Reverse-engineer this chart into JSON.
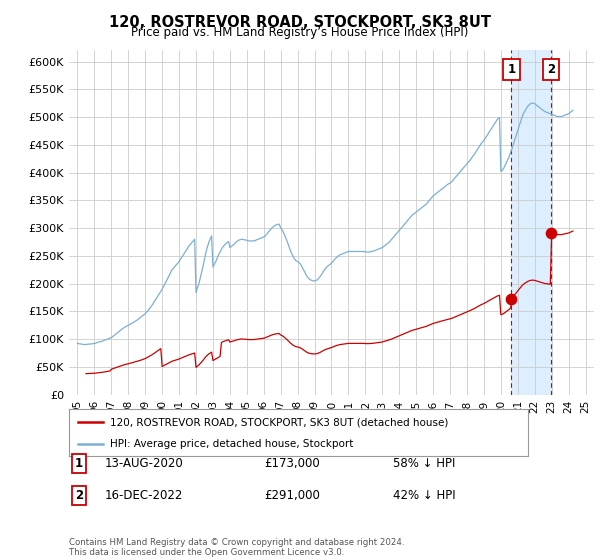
{
  "title": "120, ROSTREVOR ROAD, STOCKPORT, SK3 8UT",
  "subtitle": "Price paid vs. HM Land Registry’s House Price Index (HPI)",
  "ytick_values": [
    0,
    50000,
    100000,
    150000,
    200000,
    250000,
    300000,
    350000,
    400000,
    450000,
    500000,
    550000,
    600000
  ],
  "ylim": [
    0,
    620000
  ],
  "xlim_start": 1994.5,
  "xlim_end": 2025.5,
  "background_color": "#ffffff",
  "grid_color": "#cccccc",
  "hpi_color": "#7bafd4",
  "price_color": "#cc0000",
  "annotation_box_color": "#cc0000",
  "shaded_region_color": "#ddeeff",
  "legend_label_price": "120, ROSTREVOR ROAD, STOCKPORT, SK3 8UT (detached house)",
  "legend_label_hpi": "HPI: Average price, detached house, Stockport",
  "transaction1_label": "1",
  "transaction1_date": "13-AUG-2020",
  "transaction1_price": "£173,000",
  "transaction1_pct": "58% ↓ HPI",
  "transaction1_year": 2020.62,
  "transaction1_value": 173000,
  "transaction2_label": "2",
  "transaction2_date": "16-DEC-2022",
  "transaction2_price": "£291,000",
  "transaction2_pct": "42% ↓ HPI",
  "transaction2_year": 2022.96,
  "transaction2_value": 291000,
  "footnote": "Contains HM Land Registry data © Crown copyright and database right 2024.\nThis data is licensed under the Open Government Licence v3.0.",
  "hpi_years": [
    1995.0,
    1995.08,
    1995.17,
    1995.25,
    1995.33,
    1995.42,
    1995.5,
    1995.58,
    1995.67,
    1995.75,
    1995.83,
    1995.92,
    1996.0,
    1996.08,
    1996.17,
    1996.25,
    1996.33,
    1996.42,
    1996.5,
    1996.58,
    1996.67,
    1996.75,
    1996.83,
    1996.92,
    1997.0,
    1997.08,
    1997.17,
    1997.25,
    1997.33,
    1997.42,
    1997.5,
    1997.58,
    1997.67,
    1997.75,
    1997.83,
    1997.92,
    1998.0,
    1998.08,
    1998.17,
    1998.25,
    1998.33,
    1998.42,
    1998.5,
    1998.58,
    1998.67,
    1998.75,
    1998.83,
    1998.92,
    1999.0,
    1999.08,
    1999.17,
    1999.25,
    1999.33,
    1999.42,
    1999.5,
    1999.58,
    1999.67,
    1999.75,
    1999.83,
    1999.92,
    2000.0,
    2000.08,
    2000.17,
    2000.25,
    2000.33,
    2000.42,
    2000.5,
    2000.58,
    2000.67,
    2000.75,
    2000.83,
    2000.92,
    2001.0,
    2001.08,
    2001.17,
    2001.25,
    2001.33,
    2001.42,
    2001.5,
    2001.58,
    2001.67,
    2001.75,
    2001.83,
    2001.92,
    2002.0,
    2002.08,
    2002.17,
    2002.25,
    2002.33,
    2002.42,
    2002.5,
    2002.58,
    2002.67,
    2002.75,
    2002.83,
    2002.92,
    2003.0,
    2003.08,
    2003.17,
    2003.25,
    2003.33,
    2003.42,
    2003.5,
    2003.58,
    2003.67,
    2003.75,
    2003.83,
    2003.92,
    2004.0,
    2004.08,
    2004.17,
    2004.25,
    2004.33,
    2004.42,
    2004.5,
    2004.58,
    2004.67,
    2004.75,
    2004.83,
    2004.92,
    2005.0,
    2005.08,
    2005.17,
    2005.25,
    2005.33,
    2005.42,
    2005.5,
    2005.58,
    2005.67,
    2005.75,
    2005.83,
    2005.92,
    2006.0,
    2006.08,
    2006.17,
    2006.25,
    2006.33,
    2006.42,
    2006.5,
    2006.58,
    2006.67,
    2006.75,
    2006.83,
    2006.92,
    2007.0,
    2007.08,
    2007.17,
    2007.25,
    2007.33,
    2007.42,
    2007.5,
    2007.58,
    2007.67,
    2007.75,
    2007.83,
    2007.92,
    2008.0,
    2008.08,
    2008.17,
    2008.25,
    2008.33,
    2008.42,
    2008.5,
    2008.58,
    2008.67,
    2008.75,
    2008.83,
    2008.92,
    2009.0,
    2009.08,
    2009.17,
    2009.25,
    2009.33,
    2009.42,
    2009.5,
    2009.58,
    2009.67,
    2009.75,
    2009.83,
    2009.92,
    2010.0,
    2010.08,
    2010.17,
    2010.25,
    2010.33,
    2010.42,
    2010.5,
    2010.58,
    2010.67,
    2010.75,
    2010.83,
    2010.92,
    2011.0,
    2011.08,
    2011.17,
    2011.25,
    2011.33,
    2011.42,
    2011.5,
    2011.58,
    2011.67,
    2011.75,
    2011.83,
    2011.92,
    2012.0,
    2012.08,
    2012.17,
    2012.25,
    2012.33,
    2012.42,
    2012.5,
    2012.58,
    2012.67,
    2012.75,
    2012.83,
    2012.92,
    2013.0,
    2013.08,
    2013.17,
    2013.25,
    2013.33,
    2013.42,
    2013.5,
    2013.58,
    2013.67,
    2013.75,
    2013.83,
    2013.92,
    2014.0,
    2014.08,
    2014.17,
    2014.25,
    2014.33,
    2014.42,
    2014.5,
    2014.58,
    2014.67,
    2014.75,
    2014.83,
    2014.92,
    2015.0,
    2015.08,
    2015.17,
    2015.25,
    2015.33,
    2015.42,
    2015.5,
    2015.58,
    2015.67,
    2015.75,
    2015.83,
    2015.92,
    2016.0,
    2016.08,
    2016.17,
    2016.25,
    2016.33,
    2016.42,
    2016.5,
    2016.58,
    2016.67,
    2016.75,
    2016.83,
    2016.92,
    2017.0,
    2017.08,
    2017.17,
    2017.25,
    2017.33,
    2017.42,
    2017.5,
    2017.58,
    2017.67,
    2017.75,
    2017.83,
    2017.92,
    2018.0,
    2018.08,
    2018.17,
    2018.25,
    2018.33,
    2018.42,
    2018.5,
    2018.58,
    2018.67,
    2018.75,
    2018.83,
    2018.92,
    2019.0,
    2019.08,
    2019.17,
    2019.25,
    2019.33,
    2019.42,
    2019.5,
    2019.58,
    2019.67,
    2019.75,
    2019.83,
    2019.92,
    2020.0,
    2020.08,
    2020.17,
    2020.25,
    2020.33,
    2020.42,
    2020.5,
    2020.58,
    2020.67,
    2020.75,
    2020.83,
    2020.92,
    2021.0,
    2021.08,
    2021.17,
    2021.25,
    2021.33,
    2021.42,
    2021.5,
    2021.58,
    2021.67,
    2021.75,
    2021.83,
    2021.92,
    2022.0,
    2022.08,
    2022.17,
    2022.25,
    2022.33,
    2022.42,
    2022.5,
    2022.58,
    2022.67,
    2022.75,
    2022.83,
    2022.92,
    2023.0,
    2023.08,
    2023.17,
    2023.25,
    2023.33,
    2023.42,
    2023.5,
    2023.58,
    2023.67,
    2023.75,
    2023.83,
    2023.92,
    2024.0,
    2024.08,
    2024.17,
    2024.25
  ],
  "hpi_values": [
    93000,
    92000,
    91500,
    91000,
    90800,
    90500,
    90500,
    91000,
    91200,
    91500,
    91700,
    92000,
    92500,
    93000,
    94000,
    95000,
    95500,
    96000,
    97000,
    98000,
    99000,
    100000,
    101000,
    102000,
    103000,
    105000,
    107000,
    109000,
    111000,
    113000,
    115000,
    117000,
    119000,
    121000,
    122500,
    124000,
    125000,
    126500,
    128000,
    129500,
    131000,
    132500,
    134000,
    136000,
    138000,
    140000,
    142000,
    144000,
    146000,
    149000,
    152000,
    155000,
    158000,
    162000,
    166000,
    170000,
    174000,
    178000,
    182000,
    186000,
    190000,
    195000,
    200000,
    205000,
    210000,
    215000,
    220000,
    225000,
    228000,
    231000,
    234000,
    237000,
    240000,
    244000,
    248000,
    252000,
    256000,
    260000,
    264000,
    268000,
    271000,
    274000,
    277000,
    280000,
    184000,
    192000,
    200000,
    210000,
    220000,
    232000,
    244000,
    256000,
    266000,
    274000,
    280000,
    286000,
    230000,
    235000,
    240000,
    246000,
    252000,
    257000,
    262000,
    266000,
    269000,
    272000,
    274000,
    276000,
    265000,
    267000,
    269000,
    271000,
    274000,
    276000,
    278000,
    279000,
    280000,
    280000,
    279000,
    279000,
    278000,
    277000,
    277000,
    277000,
    277000,
    277000,
    278000,
    279000,
    280000,
    281000,
    282000,
    283000,
    284000,
    286000,
    289000,
    292000,
    295000,
    298000,
    301000,
    303000,
    305000,
    306000,
    307000,
    307000,
    300000,
    297000,
    292000,
    286000,
    280000,
    273000,
    266000,
    259000,
    253000,
    248000,
    244000,
    241000,
    240000,
    238000,
    235000,
    231000,
    226000,
    221000,
    216000,
    212000,
    209000,
    207000,
    206000,
    205000,
    205000,
    206000,
    207000,
    210000,
    213000,
    217000,
    221000,
    225000,
    228000,
    231000,
    233000,
    235000,
    237000,
    240000,
    243000,
    246000,
    248000,
    250000,
    252000,
    253000,
    254000,
    255000,
    256000,
    257000,
    258000,
    258000,
    258000,
    258000,
    258000,
    258000,
    258000,
    258000,
    258000,
    258000,
    258000,
    258000,
    257000,
    257000,
    257000,
    257000,
    258000,
    258000,
    259000,
    260000,
    261000,
    262000,
    263000,
    264000,
    265000,
    267000,
    269000,
    271000,
    273000,
    275000,
    278000,
    281000,
    284000,
    287000,
    290000,
    293000,
    296000,
    299000,
    302000,
    305000,
    308000,
    311000,
    314000,
    317000,
    320000,
    323000,
    325000,
    327000,
    329000,
    331000,
    333000,
    335000,
    337000,
    339000,
    341000,
    343000,
    346000,
    349000,
    352000,
    355000,
    358000,
    360000,
    362000,
    364000,
    366000,
    368000,
    370000,
    372000,
    374000,
    376000,
    378000,
    380000,
    381000,
    383000,
    386000,
    389000,
    392000,
    395000,
    398000,
    401000,
    404000,
    407000,
    410000,
    413000,
    416000,
    419000,
    422000,
    425000,
    429000,
    432000,
    436000,
    440000,
    444000,
    448000,
    452000,
    455000,
    458000,
    462000,
    466000,
    470000,
    474000,
    478000,
    482000,
    486000,
    490000,
    494000,
    497000,
    499000,
    402000,
    404000,
    408000,
    413000,
    418000,
    424000,
    430000,
    437000,
    444000,
    452000,
    460000,
    468000,
    476000,
    484000,
    492000,
    500000,
    506000,
    511000,
    515000,
    519000,
    522000,
    524000,
    525000,
    525000,
    524000,
    522000,
    520000,
    518000,
    516000,
    514000,
    512000,
    510000,
    509000,
    508000,
    507000,
    506000,
    505000,
    504000,
    503000,
    502000,
    501000,
    501000,
    501000,
    501000,
    502000,
    503000,
    504000,
    505000,
    506000,
    508000,
    510000,
    512000
  ],
  "transactions": [
    {
      "year": 1995.5,
      "value": 38000
    },
    {
      "year": 1997.0,
      "value": 46000
    },
    {
      "year": 2000.0,
      "value": 51000
    },
    {
      "year": 2003.5,
      "value": 94000
    },
    {
      "year": 2020.62,
      "value": 173000
    },
    {
      "year": 2022.96,
      "value": 291000
    }
  ]
}
